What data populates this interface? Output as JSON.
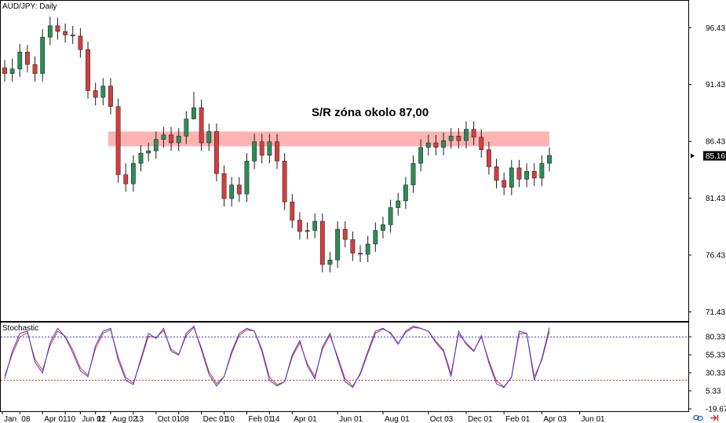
{
  "chart_data": [
    {
      "type": "candlestick",
      "title": "AUD/JPY: Daily",
      "y_ticks": [
        "96.43",
        "91.43",
        "86.43",
        "81.43",
        "76.43",
        "71.43"
      ],
      "ylim": [
        70.63,
        98.8
      ],
      "current_price": "85.16",
      "current_price_value": 85.16,
      "x_ticks": [
        "Jan",
        "08",
        "Apr 01",
        "10",
        "Jun 01",
        "12",
        "Aug 02",
        "13",
        "Oct 01",
        "08",
        "Dec 01",
        "10",
        "Feb 01",
        "14",
        "Apr 01",
        "Jun 01",
        "Aug 01",
        "Oct 03",
        "Dec 01",
        "Feb 01",
        "Apr 03",
        "Jun 01"
      ],
      "x_tick_index": [
        0,
        2,
        5,
        8,
        10,
        12,
        14,
        17,
        20,
        23,
        26,
        29,
        32,
        35,
        38,
        44,
        50,
        56,
        61,
        66,
        71,
        76
      ],
      "zone": {
        "label": "S/R zóna okolo 87,00",
        "low": 86.0,
        "high": 87.3,
        "start_index": 14,
        "end_index": 72
      },
      "series": [
        {
          "role": "close",
          "values": [
            92.4,
            92.8,
            94.3,
            93.2,
            92.4,
            95.6,
            96.6,
            96.1,
            95.8,
            95.7,
            94.5,
            90.9,
            90.3,
            91.3,
            89.5,
            83.5,
            82.7,
            84.5,
            85.4,
            85.6,
            86.6,
            87.0,
            86.3,
            86.9,
            88.4,
            89.4,
            86.3,
            87.3,
            83.6,
            81.4,
            82.6,
            81.8,
            84.7,
            86.4,
            85.2,
            86.4,
            84.7,
            81.1,
            79.5,
            78.5,
            78.6,
            79.4,
            75.6,
            76.0,
            78.7,
            77.8,
            76.6,
            76.5,
            77.4,
            78.6,
            79.1,
            80.6,
            81.2,
            82.6,
            84.5,
            85.9,
            86.3,
            85.9,
            86.5,
            86.9,
            86.5,
            87.5,
            86.8,
            85.7,
            84.2,
            83.0,
            82.4,
            84.1,
            83.1,
            83.8,
            83.2,
            84.5,
            85.2
          ]
        },
        {
          "role": "open",
          "values": [
            92.9,
            92.4,
            92.8,
            94.3,
            93.2,
            92.4,
            95.6,
            96.6,
            96.1,
            95.8,
            95.7,
            94.5,
            90.9,
            90.3,
            91.3,
            89.5,
            83.5,
            82.7,
            84.5,
            85.4,
            85.6,
            86.6,
            87.0,
            86.3,
            86.9,
            88.4,
            89.4,
            86.3,
            87.3,
            83.6,
            81.4,
            82.6,
            81.8,
            84.7,
            86.4,
            85.2,
            86.4,
            84.7,
            81.1,
            79.5,
            78.5,
            78.6,
            79.4,
            75.6,
            76.0,
            78.7,
            77.8,
            76.6,
            76.5,
            77.4,
            78.6,
            79.1,
            80.6,
            81.2,
            82.6,
            84.5,
            85.9,
            86.3,
            85.9,
            86.5,
            86.9,
            86.5,
            87.5,
            86.8,
            85.7,
            84.2,
            83.0,
            82.4,
            84.1,
            83.1,
            83.8,
            83.2,
            84.5
          ]
        },
        {
          "role": "high",
          "values": [
            93.6,
            93.7,
            95.0,
            94.9,
            93.9,
            96.3,
            97.4,
            97.3,
            96.8,
            96.6,
            96.4,
            95.2,
            91.6,
            92.0,
            92.0,
            90.2,
            84.5,
            85.2,
            86.1,
            86.3,
            87.3,
            87.7,
            87.7,
            87.6,
            89.1,
            90.8,
            90.1,
            88.0,
            88.0,
            84.3,
            83.3,
            83.3,
            85.4,
            87.1,
            87.1,
            87.1,
            87.1,
            85.4,
            81.8,
            80.2,
            79.3,
            80.1,
            80.1,
            76.7,
            79.4,
            79.4,
            78.5,
            77.3,
            78.1,
            79.3,
            79.8,
            81.3,
            81.9,
            83.3,
            85.2,
            86.6,
            87.0,
            87.0,
            87.2,
            87.6,
            87.6,
            88.2,
            88.2,
            87.5,
            86.4,
            84.9,
            83.7,
            84.8,
            84.8,
            84.5,
            84.5,
            85.2,
            85.9
          ]
        },
        {
          "role": "low",
          "values": [
            91.7,
            91.7,
            92.1,
            92.5,
            91.7,
            91.7,
            94.9,
            95.4,
            95.1,
            95.0,
            93.8,
            90.2,
            89.6,
            89.6,
            88.8,
            82.8,
            82.0,
            82.0,
            83.8,
            84.7,
            84.9,
            85.9,
            85.6,
            85.6,
            86.2,
            88.7,
            85.6,
            85.6,
            82.9,
            80.7,
            80.7,
            81.1,
            81.1,
            84.0,
            84.5,
            84.5,
            84.0,
            80.4,
            78.8,
            77.8,
            77.8,
            77.9,
            74.9,
            74.9,
            75.3,
            77.1,
            75.9,
            75.8,
            75.8,
            76.7,
            77.9,
            78.4,
            79.9,
            80.5,
            81.9,
            83.8,
            85.2,
            85.2,
            85.2,
            85.8,
            85.8,
            85.8,
            86.1,
            85.0,
            83.5,
            82.3,
            81.7,
            81.7,
            82.4,
            82.4,
            82.5,
            82.5,
            83.8
          ]
        }
      ]
    },
    {
      "type": "line",
      "title": "Stochastic",
      "y_ticks": [
        "80.33",
        "55.33",
        "30.33",
        "5.33",
        "-19.67"
      ],
      "ylim": [
        -23,
        100
      ],
      "levels": [
        80,
        20
      ],
      "series": [
        {
          "role": "main",
          "values": [
            22,
            60,
            85,
            88,
            45,
            30,
            72,
            92,
            80,
            58,
            33,
            25,
            68,
            88,
            92,
            48,
            20,
            14,
            50,
            85,
            78,
            92,
            60,
            55,
            85,
            95,
            62,
            28,
            12,
            25,
            60,
            85,
            92,
            88,
            60,
            20,
            12,
            18,
            55,
            75,
            40,
            22,
            66,
            85,
            50,
            18,
            10,
            30,
            60,
            88,
            92,
            85,
            70,
            88,
            95,
            92,
            88,
            72,
            60,
            25,
            88,
            70,
            60,
            82,
            44,
            15,
            10,
            25,
            88,
            85,
            20,
            50,
            93
          ]
        },
        {
          "role": "signal",
          "values": [
            26,
            56,
            80,
            86,
            49,
            34,
            68,
            88,
            81,
            62,
            37,
            27,
            64,
            85,
            90,
            52,
            24,
            16,
            47,
            81,
            79,
            89,
            63,
            56,
            82,
            93,
            65,
            32,
            15,
            25,
            57,
            82,
            90,
            88,
            63,
            24,
            14,
            18,
            52,
            72,
            43,
            25,
            63,
            82,
            53,
            22,
            12,
            28,
            57,
            85,
            91,
            86,
            71,
            86,
            93,
            92,
            88,
            74,
            62,
            29,
            84,
            72,
            61,
            80,
            47,
            19,
            11,
            24,
            84,
            85,
            25,
            48,
            88
          ]
        }
      ]
    }
  ],
  "colors": {
    "bull": "#2e8b57",
    "bear": "#d23f3f",
    "wick": "#1a1a1a",
    "zone": "#ff9a9a",
    "stoch_main": "#3b3bd6",
    "stoch_signal": "#e03030",
    "level_high": "#3b3bd6",
    "level_low": "#e03030"
  }
}
